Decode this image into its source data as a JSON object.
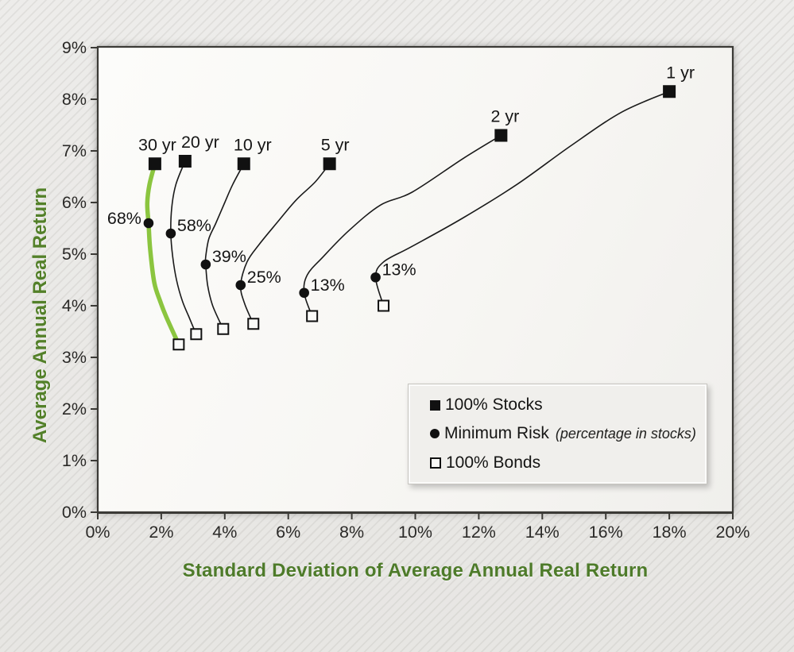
{
  "chart_data": {
    "type": "line",
    "title": "",
    "xlabel": "Standard Deviation of Average Annual Real Return",
    "ylabel": "Average Annual Real Return",
    "x_axis": {
      "min": 0,
      "max": 20,
      "tick_step": 2,
      "tick_labels": [
        "0%",
        "2%",
        "4%",
        "6%",
        "8%",
        "10%",
        "12%",
        "14%",
        "16%",
        "18%",
        "20%"
      ]
    },
    "y_axis": {
      "min": 0,
      "max": 9,
      "tick_step": 1,
      "tick_labels": [
        "0%",
        "1%",
        "2%",
        "3%",
        "4%",
        "5%",
        "6%",
        "7%",
        "8%",
        "9%"
      ]
    },
    "grid": false,
    "legend_position": "inside-bottom-right",
    "series": [
      {
        "label": "1 yr",
        "min_risk_label": "13%",
        "highlight": false,
        "stocks": [
          18.0,
          8.15
        ],
        "min_risk": [
          8.75,
          4.55
        ],
        "bonds": [
          9.0,
          4.0
        ],
        "frontier": [
          [
            18.0,
            8.15
          ],
          [
            16.5,
            7.75
          ],
          [
            14.9,
            7.1
          ],
          [
            13.2,
            6.35
          ],
          [
            11.5,
            5.7
          ],
          [
            9.9,
            5.15
          ],
          [
            9.0,
            4.85
          ],
          [
            8.75,
            4.55
          ],
          [
            9.0,
            4.0
          ]
        ],
        "label_dx": 14,
        "min_label_side": "right"
      },
      {
        "label": "2 yr",
        "min_risk_label": "13%",
        "highlight": false,
        "stocks": [
          12.7,
          7.3
        ],
        "min_risk": [
          6.5,
          4.25
        ],
        "bonds": [
          6.75,
          3.8
        ],
        "frontier": [
          [
            12.7,
            7.3
          ],
          [
            11.5,
            6.85
          ],
          [
            9.9,
            6.2
          ],
          [
            8.9,
            5.95
          ],
          [
            7.9,
            5.45
          ],
          [
            7.1,
            4.95
          ],
          [
            6.6,
            4.6
          ],
          [
            6.5,
            4.25
          ],
          [
            6.75,
            3.8
          ]
        ],
        "label_dx": 5,
        "min_label_side": "right"
      },
      {
        "label": "5 yr",
        "min_risk_label": "25%",
        "highlight": false,
        "stocks": [
          7.3,
          6.75
        ],
        "min_risk": [
          4.5,
          4.4
        ],
        "bonds": [
          4.9,
          3.65
        ],
        "frontier": [
          [
            7.3,
            6.75
          ],
          [
            6.85,
            6.4
          ],
          [
            6.25,
            6.05
          ],
          [
            5.7,
            5.65
          ],
          [
            5.1,
            5.2
          ],
          [
            4.7,
            4.85
          ],
          [
            4.5,
            4.4
          ],
          [
            4.62,
            4.05
          ],
          [
            4.9,
            3.65
          ]
        ],
        "label_dx": 7,
        "min_label_side": "right"
      },
      {
        "label": "10 yr",
        "min_risk_label": "39%",
        "highlight": false,
        "stocks": [
          4.6,
          6.75
        ],
        "min_risk": [
          3.4,
          4.8
        ],
        "bonds": [
          3.95,
          3.55
        ],
        "frontier": [
          [
            4.6,
            6.75
          ],
          [
            4.25,
            6.35
          ],
          [
            4.0,
            6.0
          ],
          [
            3.72,
            5.6
          ],
          [
            3.5,
            5.3
          ],
          [
            3.4,
            4.95
          ],
          [
            3.4,
            4.8
          ],
          [
            3.46,
            4.4
          ],
          [
            3.62,
            4.0
          ],
          [
            3.95,
            3.55
          ]
        ],
        "label_dx": 11,
        "min_label_side": "right"
      },
      {
        "label": "20 yr",
        "min_risk_label": "58%",
        "highlight": false,
        "stocks": [
          2.75,
          6.8
        ],
        "min_risk": [
          2.3,
          5.4
        ],
        "bonds": [
          3.1,
          3.45
        ],
        "frontier": [
          [
            2.75,
            6.8
          ],
          [
            2.46,
            6.35
          ],
          [
            2.33,
            5.9
          ],
          [
            2.3,
            5.4
          ],
          [
            2.36,
            4.95
          ],
          [
            2.48,
            4.5
          ],
          [
            2.66,
            4.1
          ],
          [
            2.86,
            3.8
          ],
          [
            3.1,
            3.45
          ]
        ],
        "label_dx": 19,
        "min_label_side": "right"
      },
      {
        "label": "30 yr",
        "min_risk_label": "68%",
        "highlight": true,
        "stocks": [
          1.8,
          6.75
        ],
        "min_risk": [
          1.6,
          5.6
        ],
        "bonds": [
          2.55,
          3.25
        ],
        "frontier": [
          [
            1.8,
            6.75
          ],
          [
            1.63,
            6.35
          ],
          [
            1.56,
            5.98
          ],
          [
            1.6,
            5.6
          ],
          [
            1.65,
            5.1
          ],
          [
            1.78,
            4.45
          ],
          [
            1.97,
            4.08
          ],
          [
            2.16,
            3.78
          ],
          [
            2.55,
            3.25
          ]
        ],
        "label_dx": 3,
        "min_label_side": "left"
      }
    ]
  },
  "legend": {
    "items": [
      {
        "marker": "filled-square",
        "label": "100% Stocks"
      },
      {
        "marker": "filled-circle",
        "label": "Minimum Risk",
        "note": "(percentage in stocks)"
      },
      {
        "marker": "open-square",
        "label": "100% Bonds"
      }
    ]
  },
  "colors": {
    "highlight_green": "#8bc53f",
    "axis_title_green": "#4e7b2a",
    "curve_black": "#1a1a1a",
    "marker_black": "#111111",
    "plot_border": "#3b3a36",
    "tick_label": "#2b2a28",
    "point_label": "#161616",
    "legend_bg": "#f0efec"
  }
}
